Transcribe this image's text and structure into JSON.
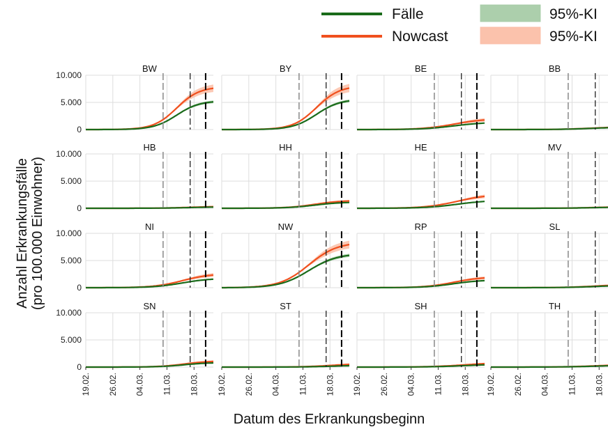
{
  "chart_data": {
    "type": "line",
    "xlabel": "Datum des Erkrankungsbeginn",
    "ylabel": [
      "Anzahl Erkrankungsfälle",
      "(pro 100.000 Einwohner)"
    ],
    "x_ticks": [
      "19.02.",
      "26.02.",
      "04.03.",
      "11.03.",
      "18.03."
    ],
    "x_tick_days": [
      0,
      7,
      14,
      21,
      28
    ],
    "x_range_days": [
      0,
      33
    ],
    "ylim": [
      0,
      10000
    ],
    "y_ticks": [
      0,
      5000,
      10000
    ],
    "y_tick_labels": [
      "0",
      "5.000",
      "10.000"
    ],
    "vlines": [
      {
        "day": 20,
        "style": "dashed-light"
      },
      {
        "day": 27,
        "style": "dashed"
      },
      {
        "day": 31,
        "style": "dashed-heavy"
      }
    ],
    "grid": true,
    "legend": {
      "placement": "top-right",
      "items": [
        {
          "label": "Fälle",
          "kind": "line",
          "color": "#1a6b1a"
        },
        {
          "label": "Nowcast",
          "kind": "line",
          "color": "#f0501e"
        },
        {
          "label": "95%-KI",
          "kind": "band",
          "color": "#a8cca8"
        },
        {
          "label": "95%-KI",
          "kind": "band",
          "color": "#fbbfa8"
        }
      ]
    },
    "colors": {
      "cases": "#1a6b1a",
      "nowcast": "#f0501e",
      "cases_band": "#a8cca8",
      "nowcast_band": "#fbbfa8",
      "grid": "#dddddd"
    },
    "panels": [
      {
        "name": "BW",
        "cases_final": 5300,
        "nowcast_final": 7900,
        "mid": 23.5,
        "k": 0.34,
        "ci_cases": 0.05,
        "ci_nowcast": 0.09
      },
      {
        "name": "BY",
        "cases_final": 5600,
        "nowcast_final": 8100,
        "mid": 24.5,
        "k": 0.33,
        "ci_cases": 0.05,
        "ci_nowcast": 0.1
      },
      {
        "name": "BE",
        "cases_final": 1350,
        "nowcast_final": 2000,
        "mid": 25.0,
        "k": 0.25,
        "ci_cases": 0.08,
        "ci_nowcast": 0.18
      },
      {
        "name": "BB",
        "cases_final": 450,
        "nowcast_final": 520,
        "mid": 26.0,
        "k": 0.25,
        "ci_cases": 0.08,
        "ci_nowcast": 0.15
      },
      {
        "name": "HB",
        "cases_final": 280,
        "nowcast_final": 380,
        "mid": 27.5,
        "k": 0.25,
        "ci_cases": 0.08,
        "ci_nowcast": 0.2
      },
      {
        "name": "HH",
        "cases_final": 1150,
        "nowcast_final": 1450,
        "mid": 24.0,
        "k": 0.28,
        "ci_cases": 0.08,
        "ci_nowcast": 0.15
      },
      {
        "name": "HE",
        "cases_final": 1500,
        "nowcast_final": 2600,
        "mid": 26.0,
        "k": 0.24,
        "ci_cases": 0.08,
        "ci_nowcast": 0.15
      },
      {
        "name": "MV",
        "cases_final": 240,
        "nowcast_final": 300,
        "mid": 27.0,
        "k": 0.25,
        "ci_cases": 0.08,
        "ci_nowcast": 0.2
      },
      {
        "name": "NI",
        "cases_final": 1750,
        "nowcast_final": 2600,
        "mid": 25.0,
        "k": 0.27,
        "ci_cases": 0.06,
        "ci_nowcast": 0.15
      },
      {
        "name": "NW",
        "cases_final": 6300,
        "nowcast_final": 8400,
        "mid": 22.5,
        "k": 0.27,
        "ci_cases": 0.05,
        "ci_nowcast": 0.09
      },
      {
        "name": "RP",
        "cases_final": 1450,
        "nowcast_final": 2000,
        "mid": 25.0,
        "k": 0.27,
        "ci_cases": 0.07,
        "ci_nowcast": 0.15
      },
      {
        "name": "SL",
        "cases_final": 450,
        "nowcast_final": 600,
        "mid": 27.0,
        "k": 0.25,
        "ci_cases": 0.08,
        "ci_nowcast": 0.2
      },
      {
        "name": "SN",
        "cases_final": 850,
        "nowcast_final": 1150,
        "mid": 25.5,
        "k": 0.3,
        "ci_cases": 0.08,
        "ci_nowcast": 0.18
      },
      {
        "name": "ST",
        "cases_final": 350,
        "nowcast_final": 700,
        "mid": 29.0,
        "k": 0.25,
        "ci_cases": 0.1,
        "ci_nowcast": 0.25
      },
      {
        "name": "SH",
        "cases_final": 550,
        "nowcast_final": 850,
        "mid": 28.0,
        "k": 0.22,
        "ci_cases": 0.1,
        "ci_nowcast": 0.22
      },
      {
        "name": "TH",
        "cases_final": 380,
        "nowcast_final": 520,
        "mid": 28.0,
        "k": 0.22,
        "ci_cases": 0.1,
        "ci_nowcast": 0.22
      }
    ]
  }
}
